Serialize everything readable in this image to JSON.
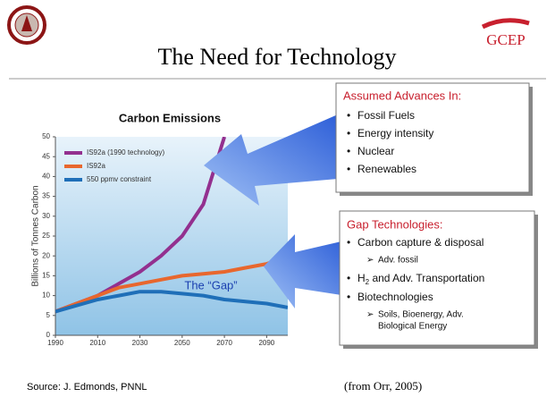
{
  "logo_text": "GCEP",
  "title": "The Need for Technology",
  "chart_data": {
    "type": "line",
    "title": "Carbon Emissions",
    "ylabel": "Billions of Tonnes Carbon",
    "x": [
      1990,
      2000,
      2010,
      2020,
      2030,
      2040,
      2050,
      2060,
      2070,
      2080,
      2090,
      2100
    ],
    "xlim": [
      1990,
      2100
    ],
    "xticks": [
      1990,
      2010,
      2030,
      2050,
      2070,
      2090
    ],
    "ylim": [
      0,
      50
    ],
    "yticks": [
      0,
      5,
      10,
      15,
      20,
      25,
      30,
      35,
      40,
      45,
      50
    ],
    "series": [
      {
        "name": "IS92a (1990 technology)",
        "color": "#93308f",
        "values": [
          6,
          8,
          10,
          13,
          16,
          20,
          25,
          33,
          50,
          null,
          null,
          null
        ]
      },
      {
        "name": "IS92a",
        "color": "#e8672e",
        "values": [
          6,
          8,
          10,
          12,
          13,
          14,
          15,
          15.5,
          16,
          17,
          18,
          20
        ]
      },
      {
        "name": "550 ppmv constraint",
        "color": "#1f6fb8",
        "values": [
          6,
          7.5,
          9,
          10,
          11,
          11,
          10.5,
          10,
          9,
          8.5,
          8,
          7
        ]
      }
    ],
    "annotation": "The “Gap”"
  },
  "advances": {
    "title": "Assumed Advances In:",
    "items": [
      "Fossil Fuels",
      "Energy intensity",
      "Nuclear",
      "Renewables"
    ]
  },
  "gap": {
    "title": "Gap Technologies:",
    "item1": "Carbon capture & disposal",
    "item1_sub": "Adv. fossil",
    "item2": {
      "main": "H",
      "subscript": "2",
      "rest": " and Adv. Transportation"
    },
    "item3": "Biotechnologies",
    "item3_sub": [
      "Soils, Bioenergy, Adv.",
      "Biological Energy"
    ]
  },
  "source": "Source:  J. Edmonds, PNNL",
  "citation": "(from Orr, 2005)"
}
